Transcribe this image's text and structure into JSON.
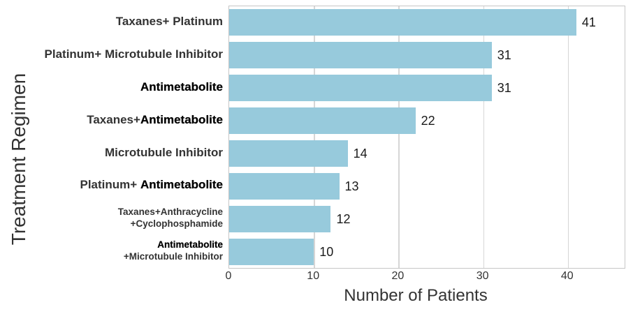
{
  "chart_data": {
    "type": "bar",
    "orientation": "horizontal",
    "title": "",
    "xlabel": "Number of Patients",
    "ylabel": "Treatment Regimen",
    "xlim": [
      0,
      46.7
    ],
    "xticks": [
      0,
      10,
      20,
      30,
      40
    ],
    "grid": "vertical",
    "legend": "none",
    "bar_color": "#97CADC",
    "categories": [
      {
        "lines": [
          [
            {
              "text": "Taxanes+ Platinum",
              "strong": false
            }
          ]
        ],
        "small": false
      },
      {
        "lines": [
          [
            {
              "text": "Platinum+ Microtubule Inhibitor",
              "strong": false
            }
          ]
        ],
        "small": false
      },
      {
        "lines": [
          [
            {
              "text": "Antimetabolite",
              "strong": true
            }
          ]
        ],
        "small": false
      },
      {
        "lines": [
          [
            {
              "text": "Taxanes+",
              "strong": false
            },
            {
              "text": "Antimetabolite",
              "strong": true
            }
          ]
        ],
        "small": false
      },
      {
        "lines": [
          [
            {
              "text": "Microtubule Inhibitor",
              "strong": false
            }
          ]
        ],
        "small": false
      },
      {
        "lines": [
          [
            {
              "text": "Platinum+ ",
              "strong": false
            },
            {
              "text": "Antimetabolite",
              "strong": true
            }
          ]
        ],
        "small": false
      },
      {
        "lines": [
          [
            {
              "text": "Taxanes+Anthracycline",
              "strong": false
            }
          ],
          [
            {
              "text": "+Cyclophosphamide",
              "strong": false
            }
          ]
        ],
        "small": true
      },
      {
        "lines": [
          [
            {
              "text": "Antimetabolite",
              "strong": true
            }
          ],
          [
            {
              "text": "+Microtubule Inhibitor",
              "strong": false
            }
          ]
        ],
        "small": true
      }
    ],
    "values": [
      41,
      31,
      31,
      22,
      14,
      13,
      12,
      10
    ]
  },
  "colors": {
    "bar": "#97CADC",
    "gridline": "#d6d6d6",
    "plot_border": "#c6c6c6",
    "text": "#333333",
    "strong_text": "#000000"
  }
}
